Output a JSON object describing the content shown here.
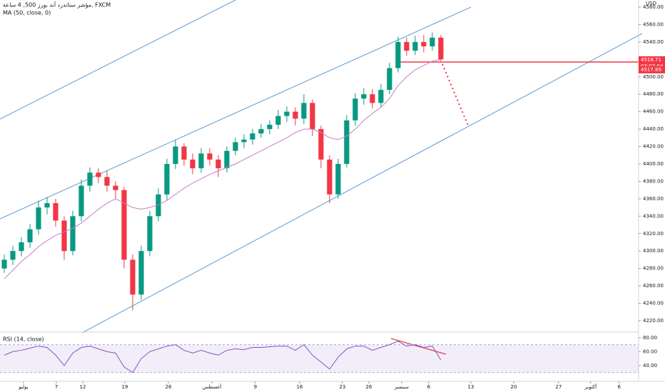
{
  "chart_data": {
    "type": "candlestick",
    "title": "مؤشر ستاندرد آند بورز 500, 4 ساعة, FXCM",
    "indicator_label": "MA (50, close, 0)",
    "currency": "USD",
    "up_color": "#089981",
    "down_color": "#f23645",
    "x": [
      0.5,
      1.5,
      2.5,
      3.5,
      4.5,
      5.5,
      6.5,
      7.5,
      8.5,
      9.5,
      10.5,
      11.5,
      12.5,
      13.5,
      14.5,
      15.5,
      16.5,
      17.5,
      18.5,
      19.5,
      20.5,
      21.5,
      22.5,
      23.5,
      24.5,
      25.5,
      26.5,
      27.5,
      28.5,
      29.5,
      30.5,
      31.5,
      32.5,
      33.5,
      34.5,
      35.5,
      36.5,
      37.5,
      38.5,
      39.5,
      40.5,
      41.5,
      42.5,
      43.5,
      44.5,
      45.5,
      46.5,
      47.5,
      48.5,
      49.5,
      50.5,
      51.5
    ],
    "open": [
      4280,
      4290,
      4300,
      4310,
      4325,
      4350,
      4355,
      4335,
      4300,
      4340,
      4375,
      4390,
      4385,
      4375,
      4370,
      4290,
      4250,
      4300,
      4340,
      4365,
      4400,
      4420,
      4405,
      4395,
      4412,
      4405,
      4395,
      4415,
      4425,
      4428,
      4435,
      4440,
      4445,
      4455,
      4460,
      4452,
      4470,
      4440,
      4405,
      4365,
      4400,
      4450,
      4475,
      4480,
      4470,
      4485,
      4510,
      4540,
      4530,
      4540,
      4535,
      4545
    ],
    "high": [
      4296,
      4306,
      4316,
      4331,
      4358,
      4362,
      4360,
      4340,
      4346,
      4382,
      4396,
      4395,
      4392,
      4380,
      4374,
      4296,
      4306,
      4346,
      4372,
      4406,
      4428,
      4424,
      4412,
      4418,
      4418,
      4410,
      4420,
      4430,
      4434,
      4440,
      4446,
      4450,
      4462,
      4466,
      4465,
      4480,
      4474,
      4444,
      4410,
      4406,
      4456,
      4481,
      4487,
      4486,
      4492,
      4516,
      4546,
      4545,
      4547,
      4548,
      4551,
      4548
    ],
    "low": [
      4275,
      4284,
      4294,
      4304,
      4319,
      4342,
      4328,
      4290,
      4295,
      4334,
      4368,
      4378,
      4368,
      4360,
      4280,
      4232,
      4244,
      4294,
      4334,
      4358,
      4394,
      4398,
      4388,
      4390,
      4398,
      4385,
      4390,
      4410,
      4418,
      4422,
      4430,
      4434,
      4440,
      4448,
      4444,
      4446,
      4432,
      4395,
      4355,
      4360,
      4396,
      4444,
      4468,
      4464,
      4465,
      4480,
      4505,
      4524,
      4525,
      4528,
      4530,
      4518
    ],
    "close": [
      4290,
      4300,
      4310,
      4325,
      4350,
      4355,
      4335,
      4300,
      4340,
      4375,
      4390,
      4385,
      4375,
      4370,
      4290,
      4250,
      4300,
      4340,
      4365,
      4400,
      4420,
      4405,
      4395,
      4412,
      4405,
      4395,
      4415,
      4425,
      4428,
      4435,
      4440,
      4445,
      4455,
      4460,
      4452,
      4470,
      4440,
      4405,
      4365,
      4400,
      4450,
      4475,
      4480,
      4470,
      4485,
      4510,
      4540,
      4530,
      4540,
      4535,
      4545,
      4520
    ],
    "ma": {
      "color": "#c77dc7",
      "values": [
        4268,
        4278,
        4288,
        4296,
        4305,
        4312,
        4318,
        4322,
        4326,
        4332,
        4340,
        4348,
        4355,
        4360,
        4355,
        4350,
        4348,
        4350,
        4353,
        4358,
        4365,
        4372,
        4378,
        4383,
        4388,
        4392,
        4396,
        4400,
        4405,
        4410,
        4415,
        4420,
        4425,
        4430,
        4436,
        4440,
        4440,
        4436,
        4430,
        4428,
        4432,
        4440,
        4450,
        4458,
        4465,
        4475,
        4490,
        4500,
        4508,
        4513,
        4518,
        4520
      ]
    },
    "xlim": [
      0,
      74.6
    ],
    "xticks": [
      {
        "value": 2.75,
        "label": "يوليو"
      },
      {
        "value": 6.58,
        "label": "7"
      },
      {
        "value": 9.67,
        "label": "12"
      },
      {
        "value": 14.58,
        "label": "19"
      },
      {
        "value": 19.67,
        "label": "26"
      },
      {
        "value": 24.75,
        "label": "أغسطس"
      },
      {
        "value": 29.83,
        "label": "9"
      },
      {
        "value": 35,
        "label": "16"
      },
      {
        "value": 40,
        "label": "23"
      },
      {
        "value": 43.08,
        "label": "26"
      },
      {
        "value": 46.92,
        "label": "سبتمبر"
      },
      {
        "value": 50.08,
        "label": "6"
      },
      {
        "value": 55,
        "label": "13"
      },
      {
        "value": 60,
        "label": "20"
      },
      {
        "value": 65.25,
        "label": "27"
      },
      {
        "value": 69,
        "label": "أكتوبر"
      },
      {
        "value": 72.33,
        "label": "6"
      }
    ],
    "ylim": [
      4207.7,
      4588.2
    ],
    "yticks": [
      {
        "value": 4580,
        "label": "4580.00"
      },
      {
        "value": 4560,
        "label": "4560.00"
      },
      {
        "value": 4540,
        "label": "4540.00"
      },
      {
        "value": 4500,
        "label": "4500.00"
      },
      {
        "value": 4480,
        "label": "4480.00"
      },
      {
        "value": 4460,
        "label": "4460.00"
      },
      {
        "value": 4440,
        "label": "4440.00"
      },
      {
        "value": 4420,
        "label": "4420.00"
      },
      {
        "value": 4400,
        "label": "4400.00"
      },
      {
        "value": 4380,
        "label": "4380.00"
      },
      {
        "value": 4360,
        "label": "4360.00"
      },
      {
        "value": 4340,
        "label": "4340.00"
      },
      {
        "value": 4320,
        "label": "4320.00"
      },
      {
        "value": 4300,
        "label": "4300.00"
      },
      {
        "value": 4280,
        "label": "4280.00"
      },
      {
        "value": 4260,
        "label": "4260.00"
      },
      {
        "value": 4240,
        "label": "4240.00"
      },
      {
        "value": 4220,
        "label": "4220.00"
      }
    ],
    "price_labels": [
      {
        "value": 4518.71,
        "label": "4518.71"
      },
      {
        "text": "03:07:04"
      },
      {
        "value": 4517.89,
        "label": "4517.89"
      }
    ],
    "rsi": {
      "label": "RSI (14, close)",
      "color": "#7e57c2",
      "values": [
        55,
        60,
        62,
        65,
        68,
        66,
        55,
        40,
        58,
        66,
        68,
        64,
        60,
        58,
        38,
        30,
        50,
        60,
        64,
        68,
        70,
        62,
        58,
        62,
        58,
        55,
        62,
        64,
        63,
        66,
        66,
        67,
        68,
        68,
        62,
        70,
        55,
        45,
        35,
        52,
        64,
        68,
        68,
        62,
        66,
        70,
        75,
        68,
        70,
        66,
        68,
        48
      ],
      "ylim": [
        22.5,
        86
      ],
      "bands": [
        30,
        70
      ],
      "yticks": [
        {
          "value": 80,
          "label": "80.00"
        },
        {
          "value": 60,
          "label": "60.00"
        },
        {
          "value": 40,
          "label": "40.00"
        }
      ]
    }
  }
}
